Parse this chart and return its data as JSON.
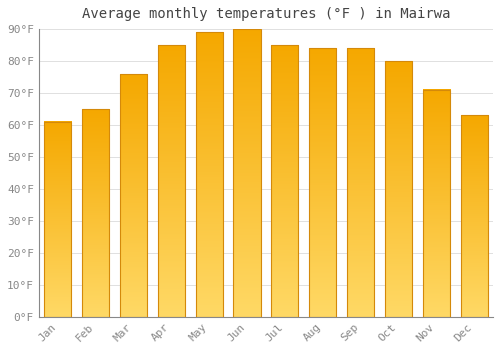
{
  "title": "Average monthly temperatures (°F ) in Mairwa",
  "months": [
    "Jan",
    "Feb",
    "Mar",
    "Apr",
    "May",
    "Jun",
    "Jul",
    "Aug",
    "Sep",
    "Oct",
    "Nov",
    "Dec"
  ],
  "values": [
    61,
    65,
    76,
    85,
    89,
    90,
    85,
    84,
    84,
    80,
    71,
    63
  ],
  "bar_color_top": "#F5A800",
  "bar_color_bottom": "#FFD966",
  "bar_color_edge": "#D4890A",
  "ylim": [
    0,
    90
  ],
  "yticks": [
    0,
    10,
    20,
    30,
    40,
    50,
    60,
    70,
    80,
    90
  ],
  "ytick_labels": [
    "0°F",
    "10°F",
    "20°F",
    "30°F",
    "40°F",
    "50°F",
    "60°F",
    "70°F",
    "80°F",
    "90°F"
  ],
  "title_fontsize": 10,
  "tick_fontsize": 8,
  "background_color": "#FFFFFF",
  "grid_color": "#E0E0E0",
  "figsize": [
    5.0,
    3.5
  ],
  "dpi": 100
}
